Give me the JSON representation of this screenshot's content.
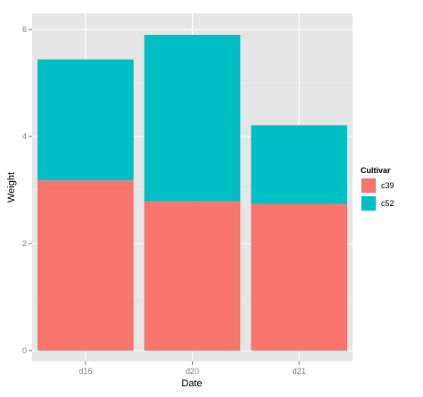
{
  "chart_data": {
    "type": "bar",
    "stacked": true,
    "categories": [
      "d16",
      "d20",
      "d21"
    ],
    "series": [
      {
        "name": "c39",
        "values": [
          3.18,
          2.79,
          2.74
        ],
        "color": "#F8766D"
      },
      {
        "name": "c52",
        "values": [
          2.26,
          3.11,
          1.47
        ],
        "color": "#00BFC4"
      }
    ],
    "xlabel": "Date",
    "ylabel": "Weight",
    "ylim": [
      0,
      6
    ],
    "yticks": [
      0,
      2,
      4,
      6
    ],
    "grid": true,
    "panel_background": "#E5E5E5",
    "legend": {
      "title": "Cultivar",
      "placement": "right"
    }
  }
}
